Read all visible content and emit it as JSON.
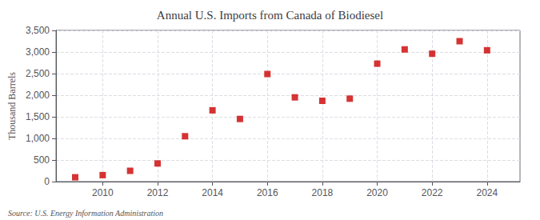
{
  "chart_data": {
    "type": "scatter",
    "title": "Annual U.S. Imports from Canada of Biodiesel",
    "ylabel": "Thousand Barrels",
    "annotation": "Source: U.S. Energy Information Administration",
    "x": [
      2009,
      2010,
      2011,
      2012,
      2013,
      2014,
      2015,
      2016,
      2017,
      2018,
      2019,
      2020,
      2021,
      2022,
      2023,
      2024
    ],
    "values": [
      100,
      150,
      250,
      420,
      1050,
      1650,
      1450,
      2490,
      1950,
      1870,
      1920,
      2730,
      3060,
      2960,
      3250,
      3040
    ],
    "color": "#cc0000",
    "marker": "square",
    "xlim": [
      2008.3,
      2025.2
    ],
    "xticks": [
      2010,
      2012,
      2014,
      2016,
      2018,
      2020,
      2022,
      2024
    ],
    "ylim": [
      0,
      3500
    ],
    "yticks": [
      0,
      500,
      {
        "value": 1000,
        "label": "1,000"
      },
      {
        "value": 1500,
        "label": "1,500"
      },
      {
        "value": 2000,
        "label": "2,000"
      },
      {
        "value": 2500,
        "label": "2,500"
      },
      {
        "value": 3000,
        "label": "3,000"
      },
      {
        "value": 3500,
        "label": "3,500"
      }
    ],
    "grid": true
  }
}
